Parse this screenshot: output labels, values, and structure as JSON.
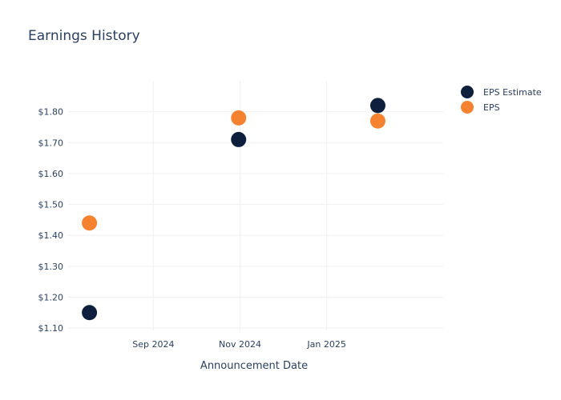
{
  "chart_data": {
    "type": "scatter",
    "title": "Earnings History",
    "xlabel": "Announcement Date",
    "ylabel": "",
    "x_axis_type": "date",
    "xlim": [
      "2024-07-03",
      "2025-03-24"
    ],
    "ylim": [
      1.0925,
      1.9
    ],
    "x_tick_labels": [
      {
        "date": "2024-09-01",
        "label": "Sep 2024"
      },
      {
        "date": "2024-11-01",
        "label": "Nov 2024"
      },
      {
        "date": "2025-01-01",
        "label": "Jan 2025"
      }
    ],
    "y_ticks": [
      1.1,
      1.2,
      1.3,
      1.4,
      1.5,
      1.6,
      1.7,
      1.8
    ],
    "y_tick_labels": [
      "$1.10",
      "$1.20",
      "$1.30",
      "$1.40",
      "$1.50",
      "$1.60",
      "$1.70",
      "$1.80"
    ],
    "grid": true,
    "legend_position": "top-right",
    "series": [
      {
        "name": "EPS Estimate",
        "color": "#0d1f3c",
        "points": [
          {
            "x": "2024-07-18",
            "y": 1.15
          },
          {
            "x": "2024-10-31",
            "y": 1.71
          },
          {
            "x": "2025-02-06",
            "y": 1.82
          }
        ]
      },
      {
        "name": "EPS",
        "color": "#f58231",
        "points": [
          {
            "x": "2024-07-18",
            "y": 1.44
          },
          {
            "x": "2024-10-31",
            "y": 1.78
          },
          {
            "x": "2025-02-06",
            "y": 1.77
          }
        ]
      }
    ]
  }
}
